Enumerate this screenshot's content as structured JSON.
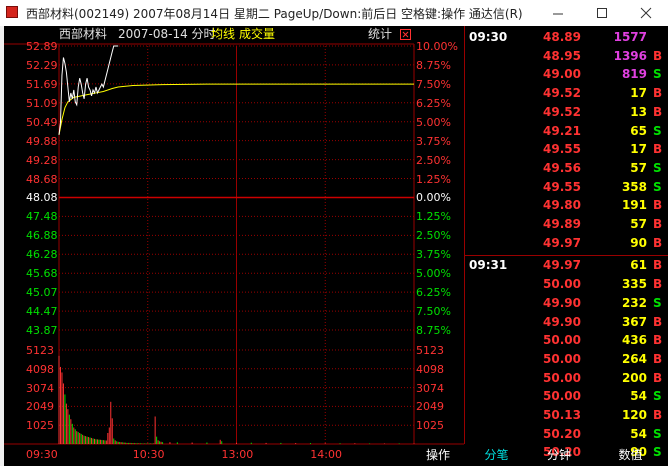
{
  "window": {
    "title": "西部材料(002149) 2007年08月14日 星期二 PageUp/Down:前后日 空格键:操作 通达信(R)"
  },
  "chart_header": {
    "stock_name": "西部材料",
    "date_label": "2007-08-14 分时",
    "avg_label": "均线",
    "volume_label": "成交量",
    "stats_label": "统计"
  },
  "colors": {
    "up": "#ff3232",
    "down": "#00e000",
    "price_line": "#ffffff",
    "avg_line": "#ffff00",
    "grid": "#990000",
    "vol_up": "#ff3232",
    "vol_down": "#00e000"
  },
  "chart_data": {
    "type": "line",
    "title": "",
    "prev_close": 48.08,
    "price_ticks": [
      "52.89",
      "52.29",
      "51.69",
      "51.09",
      "50.49",
      "49.88",
      "49.28",
      "48.68",
      "48.08",
      "47.48",
      "46.88",
      "46.28",
      "45.68",
      "45.07",
      "44.47",
      "43.87"
    ],
    "percent_ticks": [
      "10.00%",
      "8.75%",
      "7.50%",
      "6.25%",
      "5.00%",
      "3.75%",
      "2.50%",
      "1.25%",
      "0.00%",
      "1.25%",
      "2.50%",
      "3.75%",
      "5.00%",
      "6.25%",
      "7.50%",
      "8.75%"
    ],
    "ylim": [
      43.27,
      52.89
    ],
    "volume_ticks": [
      "5123",
      "4098",
      "3074",
      "2049",
      "1025"
    ],
    "volume_max": 5123,
    "time_ticks": [
      "09:30",
      "10:30",
      "13:00",
      "14:00"
    ],
    "session_minutes": 240,
    "price_series": {
      "name": "价格",
      "points": [
        [
          0,
          49.88
        ],
        [
          1,
          50.3
        ],
        [
          2,
          51.9
        ],
        [
          3,
          52.5
        ],
        [
          4,
          52.3
        ],
        [
          5,
          52.0
        ],
        [
          6,
          51.5
        ],
        [
          7,
          51.0
        ],
        [
          8,
          51.3
        ],
        [
          9,
          51.1
        ],
        [
          10,
          51.4
        ],
        [
          11,
          51.0
        ],
        [
          12,
          50.9
        ],
        [
          13,
          51.5
        ],
        [
          14,
          51.8
        ],
        [
          15,
          51.6
        ],
        [
          16,
          51.3
        ],
        [
          17,
          51.1
        ],
        [
          18,
          51.6
        ],
        [
          19,
          51.8
        ],
        [
          20,
          51.5
        ],
        [
          21,
          51.4
        ],
        [
          22,
          51.2
        ],
        [
          23,
          51.4
        ],
        [
          24,
          51.3
        ],
        [
          25,
          51.5
        ],
        [
          26,
          51.3
        ],
        [
          27,
          51.4
        ],
        [
          28,
          51.5
        ],
        [
          29,
          51.6
        ],
        [
          30,
          51.5
        ],
        [
          31,
          51.7
        ],
        [
          32,
          51.9
        ],
        [
          33,
          52.1
        ],
        [
          34,
          52.3
        ],
        [
          35,
          52.5
        ],
        [
          36,
          52.7
        ],
        [
          37,
          52.89
        ],
        [
          38,
          52.89
        ],
        [
          40,
          52.89
        ]
      ]
    },
    "avg_series": {
      "name": "均线",
      "points": [
        [
          0,
          49.88
        ],
        [
          2,
          50.4
        ],
        [
          4,
          50.8
        ],
        [
          6,
          51.0
        ],
        [
          10,
          51.15
        ],
        [
          15,
          51.2
        ],
        [
          20,
          51.25
        ],
        [
          25,
          51.3
        ],
        [
          30,
          51.35
        ],
        [
          36,
          51.45
        ],
        [
          40,
          51.5
        ],
        [
          50,
          51.55
        ],
        [
          70,
          51.58
        ],
        [
          100,
          51.6
        ],
        [
          150,
          51.6
        ],
        [
          200,
          51.6
        ],
        [
          240,
          51.6
        ]
      ]
    },
    "volume_bars": [
      [
        0,
        4800,
        "up"
      ],
      [
        1,
        4200,
        "up"
      ],
      [
        2,
        3900,
        "up"
      ],
      [
        3,
        3300,
        "up"
      ],
      [
        4,
        2700,
        "down"
      ],
      [
        5,
        2200,
        "up"
      ],
      [
        6,
        1900,
        "up"
      ],
      [
        7,
        1600,
        "down"
      ],
      [
        8,
        1350,
        "up"
      ],
      [
        9,
        1100,
        "down"
      ],
      [
        10,
        900,
        "up"
      ],
      [
        11,
        800,
        "down"
      ],
      [
        12,
        700,
        "up"
      ],
      [
        13,
        650,
        "down"
      ],
      [
        14,
        600,
        "up"
      ],
      [
        15,
        550,
        "down"
      ],
      [
        16,
        500,
        "up"
      ],
      [
        17,
        450,
        "down"
      ],
      [
        18,
        430,
        "up"
      ],
      [
        19,
        400,
        "down"
      ],
      [
        20,
        380,
        "up"
      ],
      [
        21,
        350,
        "down"
      ],
      [
        22,
        330,
        "up"
      ],
      [
        23,
        300,
        "down"
      ],
      [
        24,
        280,
        "up"
      ],
      [
        25,
        260,
        "down"
      ],
      [
        26,
        250,
        "up"
      ],
      [
        27,
        240,
        "down"
      ],
      [
        28,
        230,
        "up"
      ],
      [
        29,
        220,
        "down"
      ],
      [
        30,
        210,
        "up"
      ],
      [
        31,
        200,
        "down"
      ],
      [
        32,
        190,
        "up"
      ],
      [
        33,
        600,
        "up"
      ],
      [
        34,
        900,
        "up"
      ],
      [
        35,
        2300,
        "up"
      ],
      [
        36,
        1400,
        "up"
      ],
      [
        37,
        300,
        "down"
      ],
      [
        38,
        200,
        "up"
      ],
      [
        39,
        150,
        "down"
      ],
      [
        40,
        120,
        "up"
      ],
      [
        41,
        110,
        "down"
      ],
      [
        42,
        100,
        "up"
      ],
      [
        43,
        90,
        "down"
      ],
      [
        44,
        80,
        "up"
      ],
      [
        45,
        70,
        "down"
      ],
      [
        46,
        60,
        "up"
      ],
      [
        47,
        60,
        "down"
      ],
      [
        48,
        60,
        "up"
      ],
      [
        49,
        50,
        "down"
      ],
      [
        50,
        50,
        "up"
      ],
      [
        51,
        50,
        "down"
      ],
      [
        52,
        40,
        "up"
      ],
      [
        53,
        40,
        "down"
      ],
      [
        54,
        40,
        "up"
      ],
      [
        55,
        40,
        "down"
      ],
      [
        56,
        30,
        "up"
      ],
      [
        57,
        30,
        "down"
      ],
      [
        58,
        30,
        "up"
      ],
      [
        59,
        30,
        "down"
      ],
      [
        60,
        30,
        "up"
      ],
      [
        61,
        30,
        "down"
      ],
      [
        62,
        30,
        "up"
      ],
      [
        63,
        30,
        "down"
      ],
      [
        64,
        30,
        "up"
      ],
      [
        65,
        1500,
        "up"
      ],
      [
        66,
        400,
        "down"
      ],
      [
        67,
        200,
        "up"
      ],
      [
        68,
        150,
        "down"
      ],
      [
        69,
        120,
        "up"
      ],
      [
        70,
        100,
        "down"
      ],
      [
        75,
        100,
        "up"
      ],
      [
        80,
        90,
        "down"
      ],
      [
        90,
        80,
        "up"
      ],
      [
        100,
        80,
        "down"
      ],
      [
        109,
        230,
        "up"
      ],
      [
        110,
        150,
        "down"
      ],
      [
        120,
        70,
        "up"
      ],
      [
        130,
        70,
        "down"
      ],
      [
        140,
        60,
        "up"
      ],
      [
        150,
        60,
        "down"
      ],
      [
        160,
        50,
        "up"
      ],
      [
        170,
        50,
        "down"
      ],
      [
        180,
        40,
        "up"
      ],
      [
        190,
        40,
        "down"
      ],
      [
        200,
        40,
        "up"
      ],
      [
        210,
        30,
        "down"
      ],
      [
        220,
        30,
        "up"
      ],
      [
        230,
        30,
        "down"
      ],
      [
        240,
        30,
        "up"
      ]
    ]
  },
  "trades": {
    "groups": [
      {
        "time": "09:30",
        "rows": [
          {
            "price": "48.89",
            "vol": "1577",
            "side": ""
          },
          {
            "price": "48.95",
            "vol": "1396",
            "side": "B"
          },
          {
            "price": "49.00",
            "vol": "819",
            "side": "S"
          },
          {
            "price": "49.52",
            "vol": "17",
            "side": "B"
          },
          {
            "price": "49.52",
            "vol": "13",
            "side": "B"
          },
          {
            "price": "49.21",
            "vol": "65",
            "side": "S"
          },
          {
            "price": "49.55",
            "vol": "17",
            "side": "B"
          },
          {
            "price": "49.56",
            "vol": "57",
            "side": "S"
          },
          {
            "price": "49.55",
            "vol": "358",
            "side": "S"
          },
          {
            "price": "49.80",
            "vol": "191",
            "side": "B"
          },
          {
            "price": "49.89",
            "vol": "57",
            "side": "B"
          },
          {
            "price": "49.97",
            "vol": "90",
            "side": "B"
          }
        ]
      },
      {
        "time": "09:31",
        "rows": [
          {
            "price": "49.97",
            "vol": "61",
            "side": "B"
          },
          {
            "price": "50.00",
            "vol": "335",
            "side": "B"
          },
          {
            "price": "49.90",
            "vol": "232",
            "side": "S"
          },
          {
            "price": "49.90",
            "vol": "367",
            "side": "B"
          },
          {
            "price": "50.00",
            "vol": "436",
            "side": "B"
          },
          {
            "price": "50.00",
            "vol": "264",
            "side": "B"
          },
          {
            "price": "50.00",
            "vol": "200",
            "side": "B"
          },
          {
            "price": "50.00",
            "vol": "54",
            "side": "S"
          },
          {
            "price": "50.13",
            "vol": "120",
            "side": "B"
          },
          {
            "price": "50.20",
            "vol": "54",
            "side": "S"
          },
          {
            "price": "50.20",
            "vol": "90",
            "side": "S"
          }
        ]
      }
    ]
  },
  "tabs": [
    {
      "label": "操作"
    },
    {
      "label": "分笔",
      "active": true
    },
    {
      "label": "分钟"
    },
    {
      "label": "数值"
    }
  ]
}
